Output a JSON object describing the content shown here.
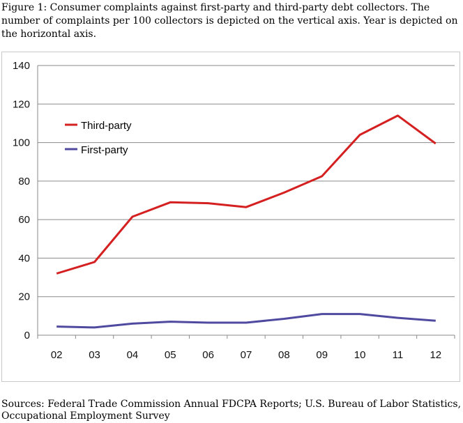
{
  "figure": {
    "caption": "Figure 1: Consumer complaints against first-party and third-party debt collectors. The number of complaints per 100 collectors is depicted on the vertical axis. Year is depicted on the horizontal axis.",
    "sources": "Sources: Federal Trade Commission Annual FDCPA Reports; U.S. Bureau of Labor Statistics, Occupational Employment Survey"
  },
  "chart_data": {
    "type": "line",
    "title": "",
    "xlabel": "",
    "ylabel": "",
    "categories": [
      "02",
      "03",
      "04",
      "05",
      "06",
      "07",
      "08",
      "09",
      "10",
      "11",
      "12"
    ],
    "ylim": [
      0,
      140
    ],
    "yticks": [
      "0",
      "20",
      "40",
      "60",
      "80",
      "100",
      "120",
      "140"
    ],
    "grid": "horizontal",
    "legend_position": "upper-left inside",
    "series": [
      {
        "name": "Third-party",
        "color": "#d42020",
        "values": [
          32,
          38,
          61.5,
          69,
          68.5,
          66.5,
          74,
          82.5,
          104,
          114,
          99.5
        ]
      },
      {
        "name": "First-party",
        "color": "#4f4aa0",
        "values": [
          4.5,
          4,
          6,
          7,
          6.5,
          6.5,
          8.5,
          11,
          11,
          9,
          7.5
        ]
      }
    ]
  }
}
